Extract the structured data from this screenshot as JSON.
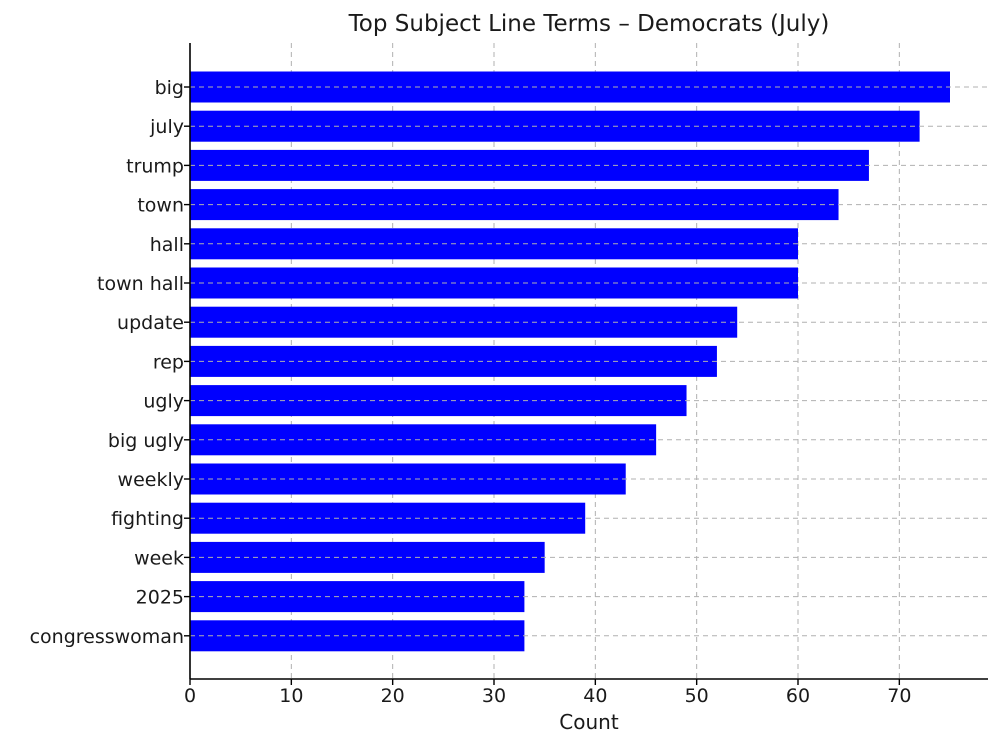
{
  "chart_data": {
    "type": "bar",
    "orientation": "horizontal",
    "title": "Top Subject Line Terms – Democrats (July)",
    "xlabel": "Count",
    "ylabel": "",
    "categories": [
      "big",
      "july",
      "trump",
      "town",
      "hall",
      "town hall",
      "update",
      "rep",
      "ugly",
      "big ugly",
      "weekly",
      "fighting",
      "week",
      "2025",
      "congresswoman"
    ],
    "values": [
      75,
      72,
      67,
      64,
      60,
      60,
      54,
      52,
      49,
      46,
      43,
      39,
      35,
      33,
      33
    ],
    "xlim": [
      0,
      78.75
    ],
    "xticks": [
      0,
      10,
      20,
      30,
      40,
      50,
      60,
      70
    ],
    "xtick_labels": [
      "0",
      "10",
      "20",
      "30",
      "40",
      "50",
      "60",
      "70"
    ],
    "grid": true,
    "bar_color": "#0000ff"
  }
}
